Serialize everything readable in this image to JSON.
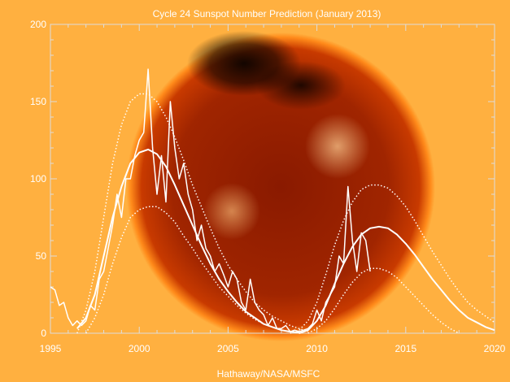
{
  "chart_data": {
    "type": "line",
    "title": "Cycle 24 Sunspot Number Prediction (January 2013)",
    "credit": "Hathaway/NASA/MSFC",
    "xlabel": "",
    "ylabel": "",
    "xlim": [
      1995,
      2020
    ],
    "ylim": [
      0,
      200
    ],
    "xticks": [
      1995,
      2000,
      2005,
      2010,
      2015,
      2020
    ],
    "yticks": [
      0,
      50,
      100,
      150,
      200
    ],
    "grid": false,
    "background": "solar x-ray image",
    "colors": {
      "lines": "#ffffff",
      "text": "#ffffff"
    },
    "series": [
      {
        "style": "solid-jagged",
        "x": [
          1995,
          1995.25,
          1995.5,
          1995.75,
          1996,
          1996.25,
          1996.5,
          1996.75,
          1997,
          1997.25,
          1997.5,
          1997.75,
          1998,
          1998.25,
          1998.5,
          1998.75,
          1999,
          1999.25,
          1999.5,
          1999.75,
          2000,
          2000.25,
          2000.5,
          2000.75,
          2001,
          2001.25,
          2001.5,
          2001.75,
          2002,
          2002.25,
          2002.5,
          2002.75,
          2003,
          2003.25,
          2003.5,
          2003.75,
          2004,
          2004.25,
          2004.5,
          2004.75,
          2005,
          2005.25,
          2005.5,
          2005.75,
          2006,
          2006.25,
          2006.5,
          2006.75,
          2007,
          2007.25,
          2007.5,
          2007.75,
          2008,
          2008.25,
          2008.5,
          2008.75,
          2009,
          2009.25,
          2009.5,
          2009.75,
          2010,
          2010.25,
          2010.5,
          2010.75,
          2011,
          2011.25,
          2011.5,
          2011.75,
          2012,
          2012.25,
          2012.5,
          2012.75,
          2013
        ],
        "y": [
          30,
          28,
          18,
          20,
          10,
          5,
          8,
          5,
          8,
          18,
          15,
          35,
          40,
          55,
          70,
          90,
          75,
          100,
          100,
          115,
          125,
          130,
          171,
          120,
          90,
          115,
          85,
          150,
          120,
          100,
          110,
          90,
          80,
          60,
          70,
          55,
          50,
          40,
          45,
          38,
          30,
          40,
          35,
          20,
          15,
          35,
          20,
          15,
          12,
          5,
          10,
          3,
          3,
          5,
          1,
          2,
          1,
          2,
          3,
          6,
          15,
          8,
          20,
          25,
          30,
          50,
          45,
          95,
          60,
          40,
          65,
          60,
          40
        ]
      },
      {
        "style": "solid-smooth",
        "x": [
          1996.5,
          1997,
          1997.5,
          1998,
          1998.5,
          1999,
          1999.5,
          2000,
          2000.5,
          2001,
          2001.5,
          2002,
          2002.5,
          2003,
          2003.5,
          2004,
          2004.5,
          2005,
          2005.5,
          2006,
          2006.5,
          2007,
          2007.5,
          2008,
          2008.5,
          2009
        ],
        "y": [
          3,
          10,
          25,
          50,
          75,
          95,
          110,
          117,
          119,
          116,
          108,
          96,
          83,
          70,
          57,
          45,
          35,
          27,
          20,
          14,
          10,
          6,
          4,
          2,
          1,
          0.5
        ]
      },
      {
        "style": "dotted",
        "x": [
          1996.5,
          1997,
          1997.5,
          1998,
          1998.5,
          1999,
          1999.5,
          2000,
          2000.5,
          2001,
          2001.5,
          2002,
          2002.5,
          2003,
          2003.5,
          2004,
          2004.5,
          2005,
          2005.5,
          2006,
          2006.5,
          2007,
          2007.5,
          2008,
          2008.5,
          2009,
          2009.5
        ],
        "y": [
          0,
          15,
          40,
          75,
          110,
          135,
          150,
          155,
          155,
          150,
          140,
          127,
          112,
          96,
          82,
          68,
          55,
          44,
          35,
          27,
          20,
          15,
          11,
          8,
          5,
          3,
          1
        ]
      },
      {
        "style": "dotted",
        "x": [
          1997,
          1997.5,
          1998,
          1998.5,
          1999,
          1999.5,
          2000,
          2000.5,
          2001,
          2001.5,
          2002,
          2002.5,
          2003,
          2003.5,
          2004,
          2004.5,
          2005,
          2005.5,
          2006,
          2006.5,
          2007,
          2007.5,
          2008,
          2008.5,
          2009
        ],
        "y": [
          0,
          10,
          25,
          45,
          62,
          75,
          80,
          82,
          82,
          78,
          72,
          63,
          55,
          46,
          38,
          30,
          24,
          18,
          13,
          9,
          6,
          4,
          2,
          1,
          0
        ]
      },
      {
        "style": "solid-smooth",
        "x": [
          2009,
          2009.5,
          2010,
          2010.5,
          2011,
          2011.5,
          2012,
          2012.5,
          2013,
          2013.5,
          2014,
          2014.5,
          2015,
          2015.5,
          2016,
          2016.5,
          2017,
          2017.5,
          2018,
          2018.5,
          2019,
          2019.5,
          2020
        ],
        "y": [
          0,
          2,
          8,
          18,
          32,
          45,
          56,
          64,
          68,
          69,
          68,
          64,
          58,
          51,
          43,
          35,
          28,
          21,
          15,
          10,
          7,
          4,
          2
        ]
      },
      {
        "style": "dotted",
        "x": [
          2008.5,
          2009,
          2009.5,
          2010,
          2010.5,
          2011,
          2011.5,
          2012,
          2012.5,
          2013,
          2013.5,
          2014,
          2014.5,
          2015,
          2015.5,
          2016,
          2016.5,
          2017,
          2017.5,
          2018,
          2018.5,
          2019,
          2019.5,
          2020
        ],
        "y": [
          0,
          2,
          8,
          20,
          38,
          57,
          73,
          85,
          93,
          96,
          96,
          94,
          89,
          82,
          73,
          63,
          53,
          44,
          35,
          27,
          20,
          15,
          11,
          7
        ]
      },
      {
        "style": "dotted",
        "x": [
          2009.5,
          2010,
          2010.5,
          2011,
          2011.5,
          2012,
          2012.5,
          2013,
          2013.5,
          2014,
          2014.5,
          2015,
          2015.5,
          2016,
          2016.5,
          2017,
          2017.5,
          2018
        ],
        "y": [
          0,
          3,
          8,
          16,
          25,
          33,
          39,
          42,
          42,
          40,
          36,
          30,
          24,
          18,
          12,
          7,
          3,
          0
        ]
      }
    ]
  }
}
